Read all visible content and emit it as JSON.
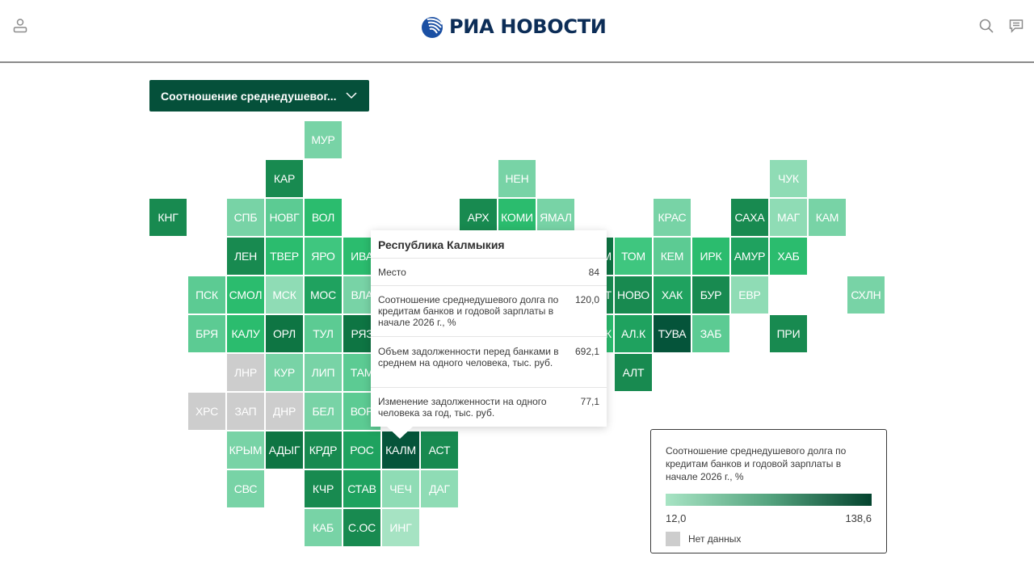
{
  "header": {
    "logo_text": "РИА НОВОСТИ",
    "left_icon": "user-icon",
    "right_icons": [
      "search-icon",
      "comments-icon"
    ]
  },
  "dropdown": {
    "selected_label": "Соотношение среднедушевог...",
    "icon": "chevron-down-icon"
  },
  "colors": {
    "c1": "#a6e3c3",
    "c2": "#8fdcb5",
    "c3": "#78d3a6",
    "c4": "#5ccb93",
    "c5": "#3fc67f",
    "c6": "#2bbc6e",
    "c7": "#1fa25f",
    "c8": "#188a50",
    "c9": "#0e7543",
    "c10": "#05543a",
    "nodata": "#cdcdcd"
  },
  "cells": [
    {
      "code": "МУР",
      "col": 4,
      "row": 0,
      "c": "c3"
    },
    {
      "code": "КАР",
      "col": 3,
      "row": 1,
      "c": "c8"
    },
    {
      "code": "НЕН",
      "col": 9,
      "row": 1,
      "c": "c3"
    },
    {
      "code": "ЧУК",
      "col": 16,
      "row": 1,
      "c": "c2"
    },
    {
      "code": "КНГ",
      "col": 0,
      "row": 2,
      "c": "c8"
    },
    {
      "code": "СПБ",
      "col": 2,
      "row": 2,
      "c": "c3"
    },
    {
      "code": "НОВГ",
      "col": 3,
      "row": 2,
      "c": "c4"
    },
    {
      "code": "ВОЛ",
      "col": 4,
      "row": 2,
      "c": "c6"
    },
    {
      "code": "АРХ",
      "col": 8,
      "row": 2,
      "c": "c8"
    },
    {
      "code": "КОМИ",
      "col": 9,
      "row": 2,
      "c": "c6"
    },
    {
      "code": "ЯМАЛ",
      "col": 10,
      "row": 2,
      "c": "c3"
    },
    {
      "code": "КРАС",
      "col": 13,
      "row": 2,
      "c": "c3"
    },
    {
      "code": "САХА",
      "col": 15,
      "row": 2,
      "c": "c8"
    },
    {
      "code": "МАГ",
      "col": 16,
      "row": 2,
      "c": "c2"
    },
    {
      "code": "КАМ",
      "col": 17,
      "row": 2,
      "c": "c3"
    },
    {
      "code": "ЛЕН",
      "col": 2,
      "row": 3,
      "c": "c8"
    },
    {
      "code": "ТВЕР",
      "col": 3,
      "row": 3,
      "c": "c6"
    },
    {
      "code": "ЯРО",
      "col": 4,
      "row": 3,
      "c": "c5"
    },
    {
      "code": "ИВА",
      "col": 5,
      "row": 3,
      "c": "c6"
    },
    {
      "code": "НОВО-hidden",
      "col": 11,
      "row": 3,
      "c": "c9",
      "label": "М"
    },
    {
      "code": "ТОМ",
      "col": 12,
      "row": 3,
      "c": "c5"
    },
    {
      "code": "КЕМ",
      "col": 13,
      "row": 3,
      "c": "c4"
    },
    {
      "code": "ИРК",
      "col": 14,
      "row": 3,
      "c": "c6"
    },
    {
      "code": "АМУР",
      "col": 15,
      "row": 3,
      "c": "c7"
    },
    {
      "code": "ХАБ",
      "col": 16,
      "row": 3,
      "c": "c6"
    },
    {
      "code": "ПСК",
      "col": 1,
      "row": 4,
      "c": "c4"
    },
    {
      "code": "СМОЛ",
      "col": 2,
      "row": 4,
      "c": "c6"
    },
    {
      "code": "МСК",
      "col": 3,
      "row": 4,
      "c": "c2"
    },
    {
      "code": "МОС",
      "col": 4,
      "row": 4,
      "c": "c7"
    },
    {
      "code": "ВЛА",
      "col": 5,
      "row": 4,
      "c": "c3"
    },
    {
      "code": "ОМ-hidden",
      "col": 11,
      "row": 4,
      "c": "c8",
      "label": "Т"
    },
    {
      "code": "НОВО",
      "col": 12,
      "row": 4,
      "c": "c8"
    },
    {
      "code": "ХАК",
      "col": 13,
      "row": 4,
      "c": "c7"
    },
    {
      "code": "БУР",
      "col": 14,
      "row": 4,
      "c": "c8"
    },
    {
      "code": "ЕВР",
      "col": 15,
      "row": 4,
      "c": "c2"
    },
    {
      "code": "СХЛН",
      "col": 18,
      "row": 4,
      "c": "c3"
    },
    {
      "code": "БРЯ",
      "col": 1,
      "row": 5,
      "c": "c4"
    },
    {
      "code": "КАЛУ",
      "col": 2,
      "row": 5,
      "c": "c6"
    },
    {
      "code": "ОРЛ",
      "col": 3,
      "row": 5,
      "c": "c9"
    },
    {
      "code": "ТУЛ",
      "col": 4,
      "row": 5,
      "c": "c4"
    },
    {
      "code": "РЯЗ",
      "col": 5,
      "row": 5,
      "c": "c9"
    },
    {
      "code": "АЛ.К-hidden",
      "col": 11,
      "row": 5,
      "c": "c6",
      "label": "К"
    },
    {
      "code": "АЛ.К",
      "col": 12,
      "row": 5,
      "c": "c7"
    },
    {
      "code": "ТУВА",
      "col": 13,
      "row": 5,
      "c": "c10"
    },
    {
      "code": "ЗАБ",
      "col": 14,
      "row": 5,
      "c": "c4"
    },
    {
      "code": "ПРИ",
      "col": 16,
      "row": 5,
      "c": "c8"
    },
    {
      "code": "ЛНР",
      "col": 2,
      "row": 6,
      "c": "nodata"
    },
    {
      "code": "КУР",
      "col": 3,
      "row": 6,
      "c": "c3"
    },
    {
      "code": "ЛИП",
      "col": 4,
      "row": 6,
      "c": "c3"
    },
    {
      "code": "ТАМ",
      "col": 5,
      "row": 6,
      "c": "c4"
    },
    {
      "code": "АЛТ",
      "col": 12,
      "row": 6,
      "c": "c8"
    },
    {
      "code": "ХРС",
      "col": 0.98,
      "row": 7,
      "c": "nodata"
    },
    {
      "code": "ЗАП",
      "col": 2,
      "row": 7,
      "c": "nodata"
    },
    {
      "code": "ДНР",
      "col": 3,
      "row": 7,
      "c": "nodata"
    },
    {
      "code": "БЕЛ",
      "col": 4,
      "row": 7,
      "c": "c3"
    },
    {
      "code": "ВОР",
      "col": 5,
      "row": 7,
      "c": "c4"
    },
    {
      "code": "КРЫМ",
      "col": 2,
      "row": 8,
      "c": "c3"
    },
    {
      "code": "АДЫГ",
      "col": 3,
      "row": 8,
      "c": "c9"
    },
    {
      "code": "КРДР",
      "col": 4,
      "row": 8,
      "c": "c8"
    },
    {
      "code": "РОС",
      "col": 5,
      "row": 8,
      "c": "c7"
    },
    {
      "code": "КАЛМ",
      "col": 6,
      "row": 8,
      "c": "c10"
    },
    {
      "code": "АСТ",
      "col": 7,
      "row": 8,
      "c": "c8"
    },
    {
      "code": "СВС",
      "col": 2,
      "row": 9,
      "c": "c3"
    },
    {
      "code": "КЧР",
      "col": 4,
      "row": 9,
      "c": "c8"
    },
    {
      "code": "СТАВ",
      "col": 5,
      "row": 9,
      "c": "c7"
    },
    {
      "code": "ЧЕЧ",
      "col": 6,
      "row": 9,
      "c": "c2"
    },
    {
      "code": "ДАГ",
      "col": 7,
      "row": 9,
      "c": "c2"
    },
    {
      "code": "КАБ",
      "col": 4,
      "row": 10,
      "c": "c3"
    },
    {
      "code": "С.ОС",
      "col": 5,
      "row": 10,
      "c": "c8"
    },
    {
      "code": "ИНГ",
      "col": 6,
      "row": 10,
      "c": "c1"
    }
  ],
  "tooltip": {
    "title": "Республика Калмыкия",
    "rows": [
      {
        "label": "Место",
        "value": "84"
      },
      {
        "label": "Соотношение среднедушевого долга по кредитам банков и годовой зарплаты в начале 2026 г., %",
        "value": "120,0"
      },
      {
        "label": "Объем задолженности перед банками в среднем на одного человека, тыс. руб.",
        "value": "692,1"
      },
      {
        "label": "Изменение задолженности на одного человека за год, тыс. руб.",
        "value": "77,1"
      }
    ]
  },
  "legend": {
    "title": "Соотношение среднедушевого долга по кредитам банков и годовой зарплаты в начале 2026 г., %",
    "min": "12,0",
    "max": "138,6",
    "no_data_label": "Нет данных"
  }
}
